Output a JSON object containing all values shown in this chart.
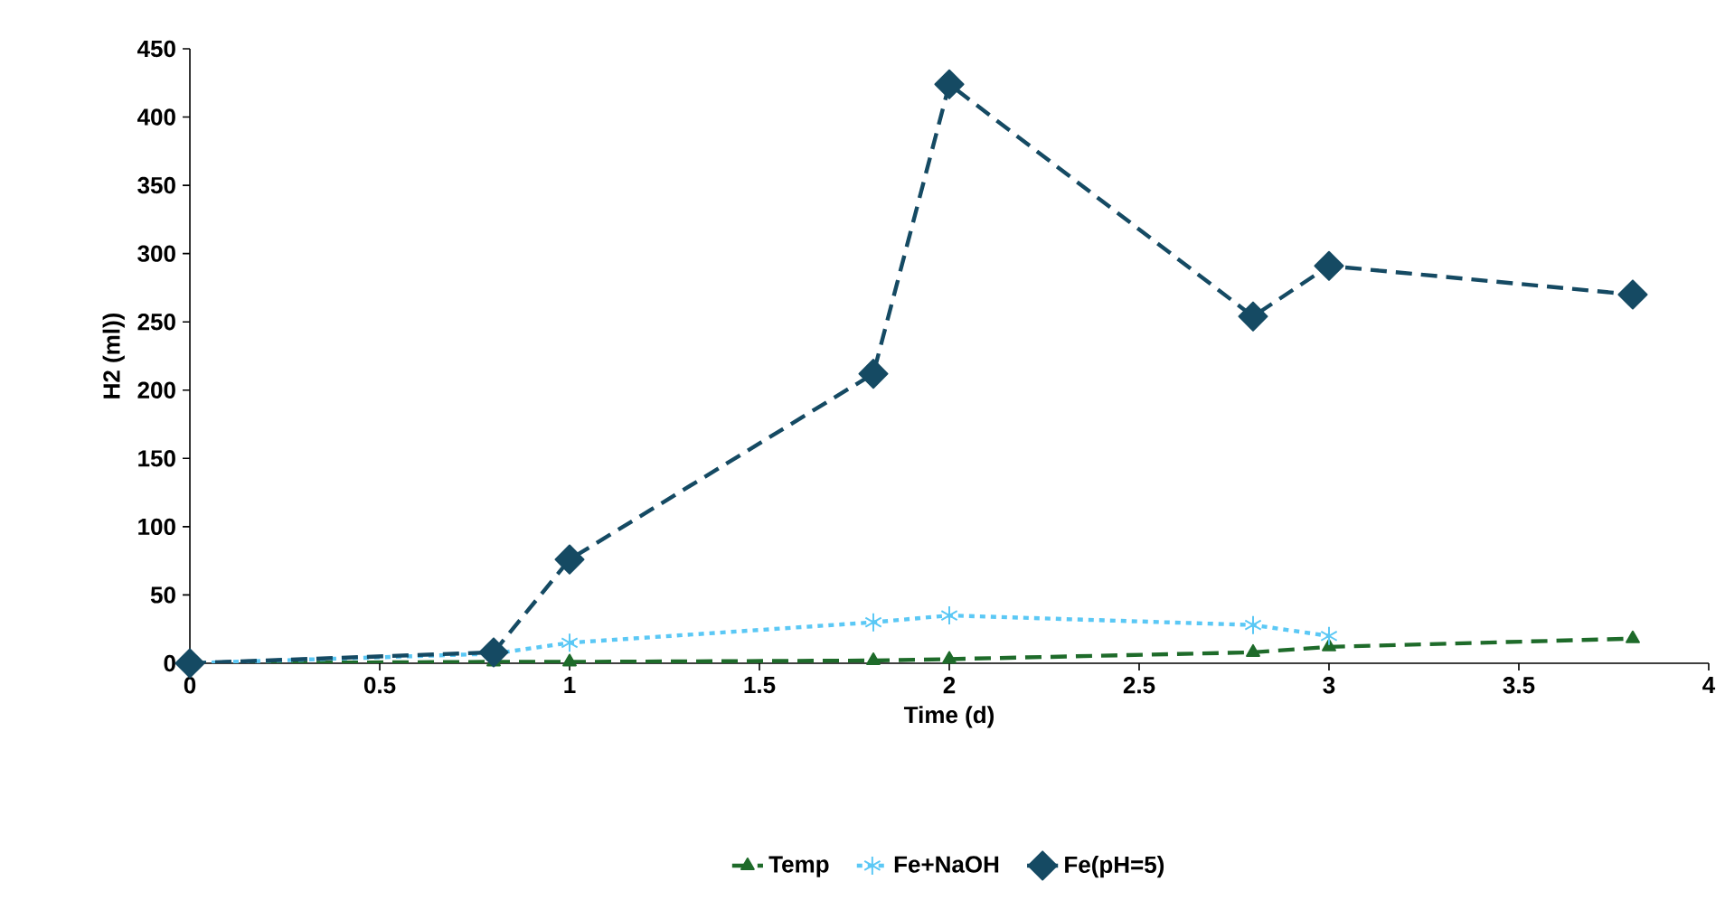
{
  "chart_data": {
    "type": "line",
    "xlabel": "Time (d)",
    "ylabel": "H2 (ml))",
    "xlim": [
      0,
      4
    ],
    "ylim": [
      0,
      450
    ],
    "xticks": [
      0,
      0.5,
      1,
      1.5,
      2,
      2.5,
      3,
      3.5,
      4
    ],
    "yticks": [
      0,
      50,
      100,
      150,
      200,
      250,
      300,
      350,
      400,
      450
    ],
    "grid": false,
    "legend": "bottom",
    "series": [
      {
        "name": "Temp",
        "color": "#1e6b2a",
        "marker": "triangle",
        "line_style": "dashed",
        "x": [
          0,
          0.8,
          1,
          1.8,
          2,
          2.8,
          3,
          3.8
        ],
        "values": [
          0,
          1,
          1,
          2,
          3,
          8,
          12,
          18
        ]
      },
      {
        "name": "Fe+NaOH",
        "color": "#5bc8f5",
        "marker": "cross",
        "line_style": "dotted",
        "x": [
          0,
          0.8,
          1,
          1.8,
          2,
          2.8,
          3
        ],
        "values": [
          0,
          7,
          15,
          30,
          35,
          28,
          20
        ]
      },
      {
        "name": "Fe(pH=5)",
        "color": "#154a63",
        "marker": "diamond",
        "line_style": "dashed",
        "x": [
          0,
          0.8,
          1,
          1.8,
          2,
          2.8,
          3,
          3.8
        ],
        "values": [
          0,
          8,
          76,
          212,
          424,
          254,
          291,
          270
        ]
      }
    ]
  }
}
